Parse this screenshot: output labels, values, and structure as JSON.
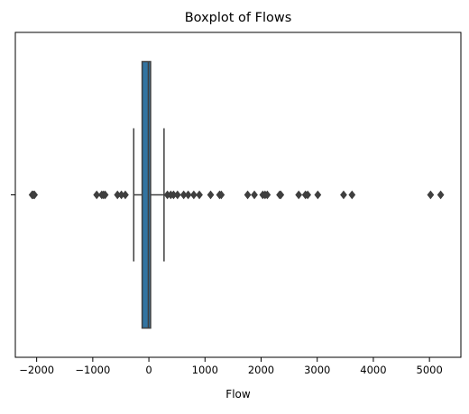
{
  "chart_data": {
    "type": "boxplot",
    "title": "Boxplot of Flows",
    "xlabel": "Flow",
    "ylabel": "",
    "orientation": "horizontal",
    "xlim": [
      -2380,
      5560
    ],
    "xticks": [
      -2000,
      -1000,
      0,
      1000,
      2000,
      3000,
      4000,
      5000
    ],
    "xtick_labels": [
      "−2000",
      "−1000",
      "0",
      "1000",
      "2000",
      "3000",
      "4000",
      "5000"
    ],
    "yticks": [
      ""
    ],
    "grid": false,
    "box": {
      "whisker_low": -270,
      "q1": -120,
      "median": -10,
      "q3": 30,
      "whisker_high": 270,
      "color": "#3274a1",
      "line_color": "#3f3f3f"
    },
    "outliers": [
      -2080,
      -2060,
      -2040,
      -930,
      -840,
      -810,
      -780,
      -560,
      -490,
      -420,
      330,
      390,
      440,
      510,
      620,
      700,
      800,
      900,
      1100,
      1260,
      1290,
      1760,
      1880,
      2030,
      2070,
      2110,
      2330,
      2350,
      2670,
      2790,
      2830,
      3010,
      3470,
      3620,
      5020,
      5200
    ]
  }
}
